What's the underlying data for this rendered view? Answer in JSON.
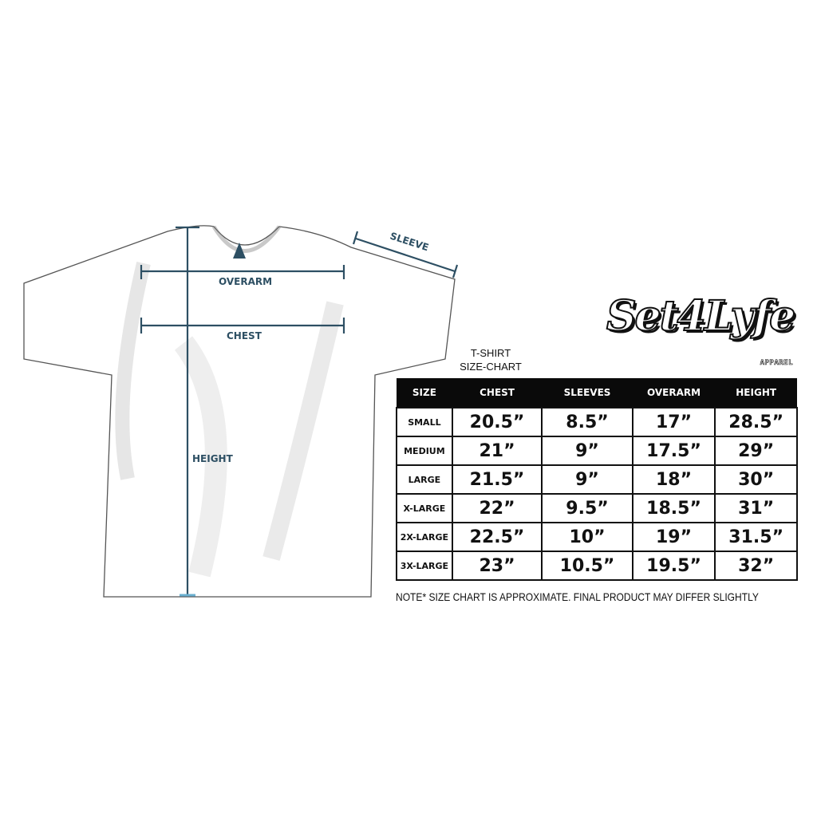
{
  "measurement_labels": {
    "overarm": "OVERARM",
    "chest": "CHEST",
    "sleeve": "SLEEVE",
    "height": "HEIGHT"
  },
  "chart_title": [
    "T-SHIRT",
    "SIZE-CHART"
  ],
  "logo": {
    "text": "Set4Lyfe",
    "sub": "APPAREL"
  },
  "colors": {
    "measure": "#2d4f63",
    "header_bg": "#0a0a0a"
  },
  "table": {
    "headers": [
      "SIZE",
      "CHEST",
      "SLEEVES",
      "OVERARM",
      "HEIGHT"
    ],
    "rows": [
      [
        "SMALL",
        "20.5”",
        "8.5”",
        "17”",
        "28.5”"
      ],
      [
        "MEDIUM",
        "21”",
        "9”",
        "17.5”",
        "29”"
      ],
      [
        "LARGE",
        "21.5”",
        "9”",
        "18”",
        "30”"
      ],
      [
        "X-LARGE",
        "22”",
        "9.5”",
        "18.5”",
        "31”"
      ],
      [
        "2X-LARGE",
        "22.5”",
        "10”",
        "19”",
        "31.5”"
      ],
      [
        "3X-LARGE",
        "23”",
        "10.5”",
        "19.5”",
        "32”"
      ]
    ]
  },
  "note": "NOTE* SIZE CHART IS APPROXIMATE. FINAL PRODUCT MAY DIFFER SLIGHTLY"
}
